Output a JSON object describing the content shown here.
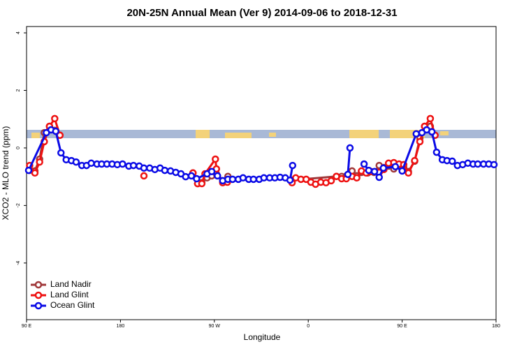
{
  "chart_data": {
    "type": "line",
    "title": "20N-25N Annual Mean (Ver 9)   2014-09-06 to 2018-12-31",
    "x_label": "Longitude",
    "y_label": "XCO2 - MLO trend (ppm)",
    "xlim": [
      90,
      540
    ],
    "ylim": [
      -5.97,
      4.22
    ],
    "xticks": [
      {
        "value": 90,
        "label": "90 E"
      },
      {
        "value": 180,
        "label": "180"
      },
      {
        "value": 270,
        "label": "90 W"
      },
      {
        "value": 360,
        "label": "0"
      },
      {
        "value": 450,
        "label": "90 E"
      },
      {
        "value": 540,
        "label": "180"
      }
    ],
    "yticks": [
      -4,
      -2,
      0,
      2,
      4
    ],
    "legend": "bottomleft",
    "series": [
      {
        "name": "Land Nadir",
        "color": "#a0383a",
        "x": [
          93,
          98,
          102.5,
          107,
          112,
          117,
          122,
          null,
          249.5,
          254,
          258,
          263,
          267.5,
          272,
          278,
          283,
          null,
          344.5,
          387,
          392,
          396.5,
          402,
          406.5,
          411,
          417,
          423,
          428,
          432.5,
          437,
          442,
          447,
          451.5,
          456,
          462,
          467,
          471.5,
          477,
          481.5
        ],
        "values": [
          -0.78,
          -0.8,
          -0.39,
          0.53,
          0.75,
          0.61,
          0.44,
          null,
          -0.87,
          -1.24,
          -1.21,
          -1.04,
          -0.97,
          -0.9,
          -1.14,
          -0.99,
          null,
          -1.12,
          -0.99,
          -0.99,
          -0.97,
          -0.8,
          -0.97,
          -0.85,
          -0.87,
          -0.85,
          -0.61,
          -0.68,
          -0.63,
          -0.73,
          -0.61,
          -0.68,
          -0.82,
          -0.46,
          0.34,
          0.75,
          0.75,
          0.44
        ]
      },
      {
        "name": "Land Glint",
        "color": "#ee1111",
        "x": [
          93,
          98,
          102.5,
          107,
          112,
          117,
          122,
          null,
          202.5,
          null,
          249.5,
          254,
          258,
          261,
          271,
          272,
          278,
          282.5,
          null,
          344.5,
          348,
          353,
          358,
          362.5,
          367,
          372,
          377,
          382,
          387,
          392,
          396.5,
          402,
          406.5,
          411,
          415.5,
          420,
          428,
          432.5,
          437,
          442,
          447,
          451.5,
          456,
          462,
          467,
          471.5,
          477,
          481.5
        ],
        "values": [
          -0.61,
          -0.87,
          -0.49,
          0.22,
          0.75,
          1.02,
          0.44,
          null,
          -0.97,
          null,
          -0.87,
          -1.24,
          -1.24,
          -0.9,
          -0.39,
          -0.73,
          -1.21,
          -1.19,
          null,
          -1.21,
          -1.04,
          -1.09,
          -1.09,
          -1.19,
          -1.26,
          -1.19,
          -1.21,
          -1.14,
          -0.99,
          -1.07,
          -1.07,
          -0.99,
          -1.04,
          -0.8,
          -0.87,
          -0.82,
          -0.85,
          -0.75,
          -0.53,
          -0.51,
          -0.56,
          -0.58,
          -0.87,
          -0.44,
          0.22,
          0.75,
          1.02,
          0.44
        ]
      },
      {
        "name": "Ocean Glint",
        "color": "#0a0ae6",
        "x": [
          92,
          109,
          113.5,
          118,
          123,
          128,
          133,
          137.5,
          143,
          147.5,
          152,
          157.5,
          162,
          167,
          172,
          177,
          182,
          188,
          192.5,
          198,
          202.5,
          208,
          213,
          218,
          222.5,
          228,
          233,
          238,
          242.5,
          248,
          253,
          263,
          267.5,
          273,
          278,
          283,
          287.5,
          293,
          297.5,
          303,
          307.5,
          313,
          317.5,
          323,
          328,
          333,
          338,
          342.5,
          345,
          null,
          398,
          400,
          null,
          413.5,
          418,
          423.5,
          428,
          432,
          443.5,
          450,
          463.5,
          469,
          473.5,
          478.5,
          483,
          488.5,
          493,
          498,
          503,
          508,
          513,
          518,
          522.5,
          528,
          533,
          538
        ],
        "values": [
          -0.78,
          0.53,
          0.63,
          0.58,
          -0.17,
          -0.41,
          -0.44,
          -0.49,
          -0.61,
          -0.61,
          -0.53,
          -0.56,
          -0.56,
          -0.56,
          -0.56,
          -0.58,
          -0.56,
          -0.63,
          -0.61,
          -0.63,
          -0.7,
          -0.7,
          -0.75,
          -0.7,
          -0.78,
          -0.8,
          -0.85,
          -0.9,
          -1.0,
          -0.97,
          -1.07,
          -0.9,
          -0.82,
          -0.97,
          -1.14,
          -1.09,
          -1.09,
          -1.09,
          -1.04,
          -1.09,
          -1.09,
          -1.09,
          -1.04,
          -1.04,
          -1.04,
          -1.02,
          -1.04,
          -1.12,
          -0.61,
          null,
          -0.92,
          0.0,
          null,
          -0.56,
          -0.78,
          -0.82,
          -1.02,
          -0.7,
          -0.65,
          -0.8,
          0.49,
          0.53,
          0.63,
          0.56,
          -0.15,
          -0.41,
          -0.44,
          -0.46,
          -0.61,
          -0.58,
          -0.53,
          -0.56,
          -0.56,
          -0.56,
          -0.56,
          -0.58
        ]
      }
    ]
  }
}
